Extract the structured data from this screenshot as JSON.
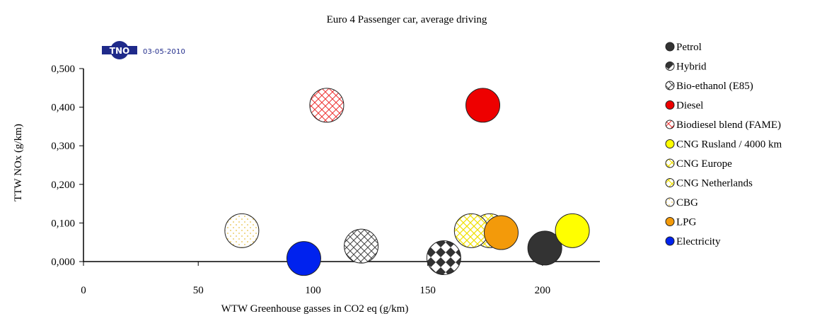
{
  "logo": {
    "text": "TNO",
    "date": "03-05-2010"
  },
  "colors": {
    "axis": "#000000",
    "logo_blue": "#1f2a8a"
  },
  "chart_data": {
    "type": "scatter",
    "subtype": "bubble",
    "title": "Euro 4 Passenger car, average driving",
    "xlabel": "WTW Greenhouse gasses in CO2 eq (g/km)",
    "ylabel": "TTW NOx (g/km)",
    "xlim": [
      0,
      225
    ],
    "ylim": [
      0,
      0.5
    ],
    "x_ticks": [
      "0",
      "50",
      "100",
      "150",
      "200"
    ],
    "x_tick_values": [
      0,
      50,
      100,
      150,
      200
    ],
    "y_ticks": [
      "0,000",
      "0,100",
      "0,200",
      "0,300",
      "0,400",
      "0,500"
    ],
    "y_tick_values": [
      0,
      0.1,
      0.2,
      0.3,
      0.4,
      0.5
    ],
    "grid": false,
    "legend_position": "right",
    "series": [
      {
        "name": "Petrol",
        "x": 201,
        "y": 0.035,
        "color": "#333333",
        "pattern": "solid"
      },
      {
        "name": "Hybrid",
        "x": 157,
        "y": 0.01,
        "color": "#333333",
        "pattern": "diamond"
      },
      {
        "name": "Bio-ethanol (E85)",
        "x": 121,
        "y": 0.04,
        "color": "#444444",
        "pattern": "crosshatch"
      },
      {
        "name": "Diesel",
        "x": 174,
        "y": 0.405,
        "color": "#ee0000",
        "pattern": "solid"
      },
      {
        "name": "Biodiesel blend (FAME)",
        "x": 106,
        "y": 0.405,
        "color": "#ee3333",
        "pattern": "crosshatch"
      },
      {
        "name": "CNG Rusland / 4000 km",
        "x": 213,
        "y": 0.08,
        "color": "#ffff00",
        "pattern": "solid"
      },
      {
        "name": "CNG Europe",
        "x": 177,
        "y": 0.08,
        "color": "#ffff55",
        "pattern": "crosshatch"
      },
      {
        "name": "CNG Netherlands",
        "x": 169,
        "y": 0.08,
        "color": "#ffee66",
        "pattern": "crosshatch"
      },
      {
        "name": "CBG",
        "x": 69,
        "y": 0.08,
        "color": "#e8d066",
        "pattern": "dots"
      },
      {
        "name": "LPG",
        "x": 182,
        "y": 0.075,
        "color": "#f39a0a",
        "pattern": "solid"
      },
      {
        "name": "Electricity",
        "x": 96,
        "y": 0.008,
        "color": "#0022ee",
        "pattern": "solid"
      }
    ]
  }
}
